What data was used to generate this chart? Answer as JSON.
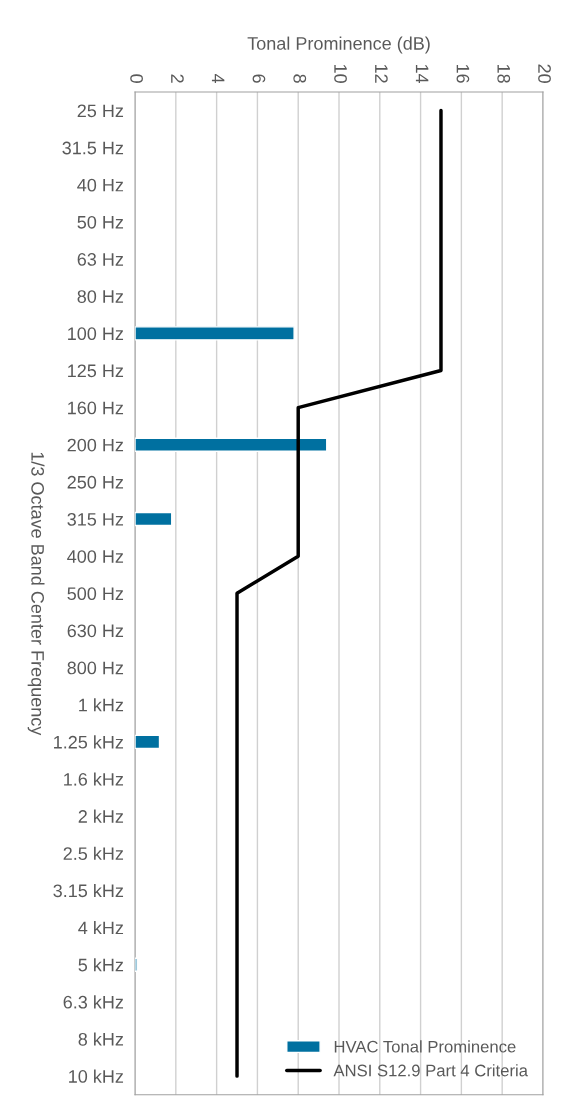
{
  "chart_data": {
    "type": "bar",
    "orientation": "horizontal",
    "xlabel": "Tonal Prominence (dB)",
    "ylabel": "1/3 Octave Band Center Frequency",
    "categories": [
      "25 Hz",
      "31.5 Hz",
      "40 Hz",
      "50 Hz",
      "63 Hz",
      "80 Hz",
      "100 Hz",
      "125 Hz",
      "160 Hz",
      "200 Hz",
      "250 Hz",
      "315 Hz",
      "400 Hz",
      "500 Hz",
      "630 Hz",
      "800 Hz",
      "1 kHz",
      "1.25 kHz",
      "1.6 kHz",
      "2 kHz",
      "2.5 kHz",
      "3.15 kHz",
      "4 kHz",
      "5 kHz",
      "6.3 kHz",
      "8 kHz",
      "10 kHz"
    ],
    "series": [
      {
        "name": "HVAC Tonal Prominence",
        "color": "#0070a0",
        "values": [
          null,
          null,
          null,
          null,
          null,
          null,
          7.8,
          null,
          null,
          9.4,
          null,
          1.8,
          null,
          null,
          null,
          null,
          null,
          1.2,
          null,
          null,
          null,
          null,
          null,
          0.1,
          null,
          null,
          null
        ]
      },
      {
        "name": "ANSI S12.9 Part 4 Criteria",
        "type": "line",
        "color": "#000000",
        "values": [
          15,
          15,
          15,
          15,
          15,
          15,
          15,
          15,
          8,
          8,
          8,
          8,
          8,
          5,
          5,
          5,
          5,
          5,
          5,
          5,
          5,
          5,
          5,
          5,
          5,
          5,
          5
        ]
      }
    ],
    "xlim": [
      0,
      20
    ],
    "xticks": [
      0,
      2,
      4,
      6,
      8,
      10,
      12,
      14,
      16,
      18,
      20
    ],
    "grid": "x",
    "legend": "bottom right"
  }
}
